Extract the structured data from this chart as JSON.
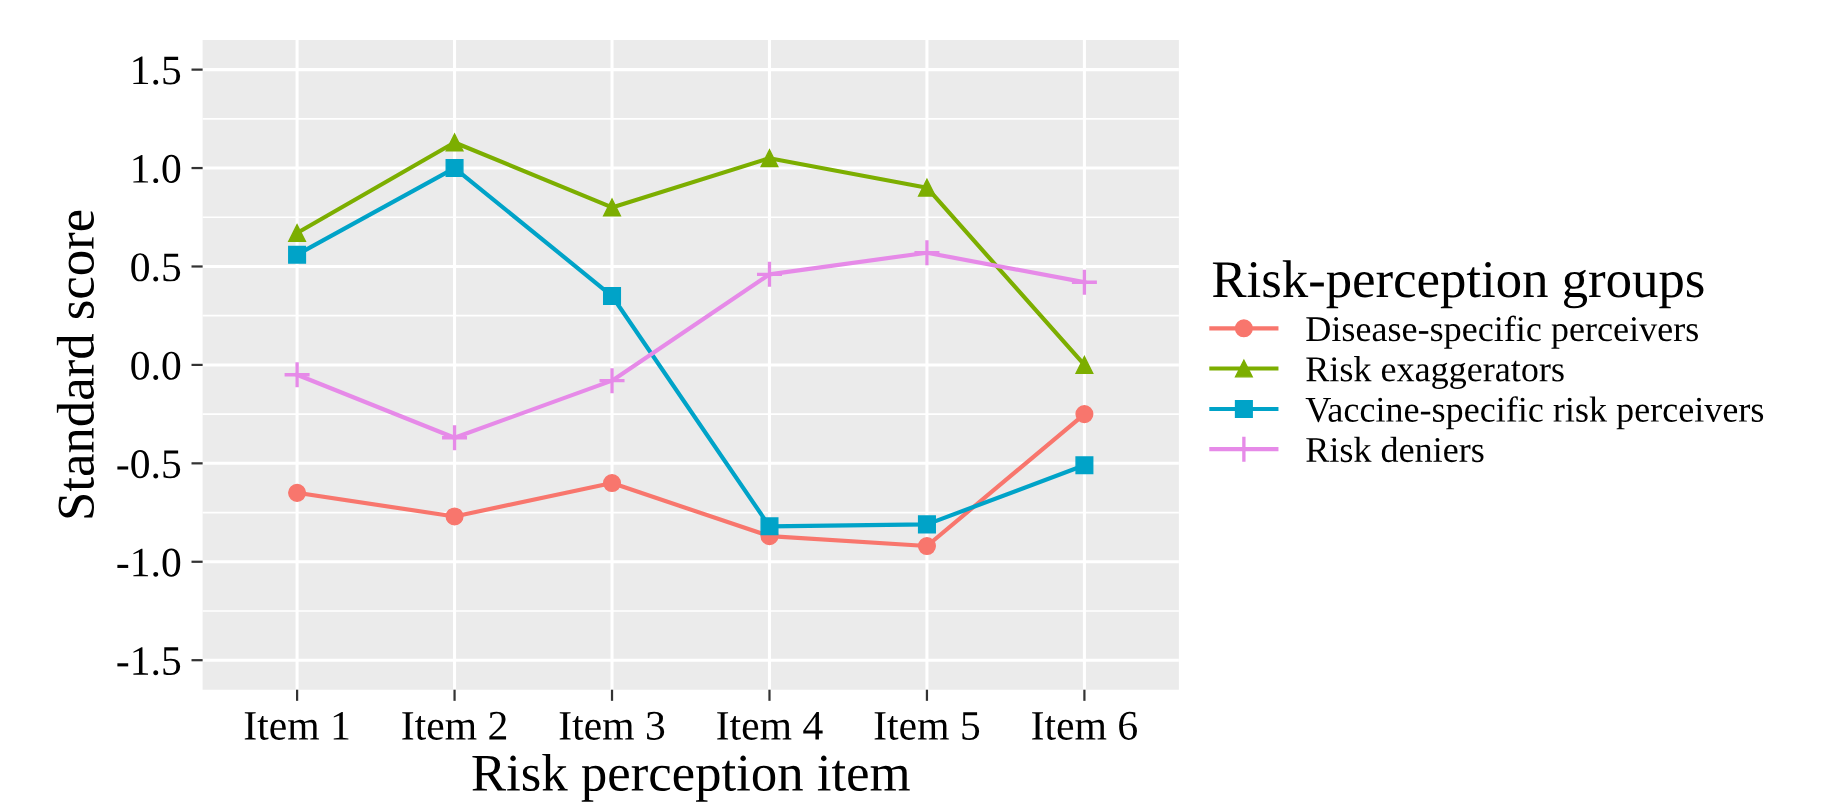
{
  "chart_data": {
    "type": "line",
    "xlabel": "Risk perception item",
    "ylabel": "Standard score",
    "legend_title": "Risk-perception groups",
    "categories": [
      "Item 1",
      "Item 2",
      "Item 3",
      "Item 4",
      "Item 5",
      "Item 6"
    ],
    "series": [
      {
        "name": "Disease-specific perceivers",
        "color": "#F8766D",
        "marker": "circle",
        "values": [
          -0.65,
          -0.77,
          -0.6,
          -0.87,
          -0.92,
          -0.25
        ]
      },
      {
        "name": "Risk exaggerators",
        "color": "#7CAE00",
        "marker": "triangle",
        "values": [
          0.67,
          1.13,
          0.8,
          1.05,
          0.9,
          0.0
        ]
      },
      {
        "name": "Vaccine-specific risk perceivers",
        "color": "#00A3C8",
        "marker": "square",
        "values": [
          0.56,
          1.0,
          0.35,
          -0.82,
          -0.81,
          -0.51
        ]
      },
      {
        "name": "Risk deniers",
        "color": "#E68AE8",
        "marker": "cross",
        "values": [
          -0.05,
          -0.37,
          -0.08,
          0.46,
          0.57,
          0.42
        ]
      }
    ],
    "ylim": [
      -1.65,
      1.65
    ],
    "yticks": [
      {
        "value": -1.5,
        "label": "-1.5"
      },
      {
        "value": -1.0,
        "label": "-1.0"
      },
      {
        "value": -0.5,
        "label": "-0.5"
      },
      {
        "value": 0,
        "label": "0.0"
      },
      {
        "value": 0.5,
        "label": "0.5"
      },
      {
        "value": 1.0,
        "label": "1.0"
      },
      {
        "value": 1.5,
        "label": "1.5"
      }
    ],
    "grid": true,
    "legend": "right",
    "line_style": "solid"
  }
}
